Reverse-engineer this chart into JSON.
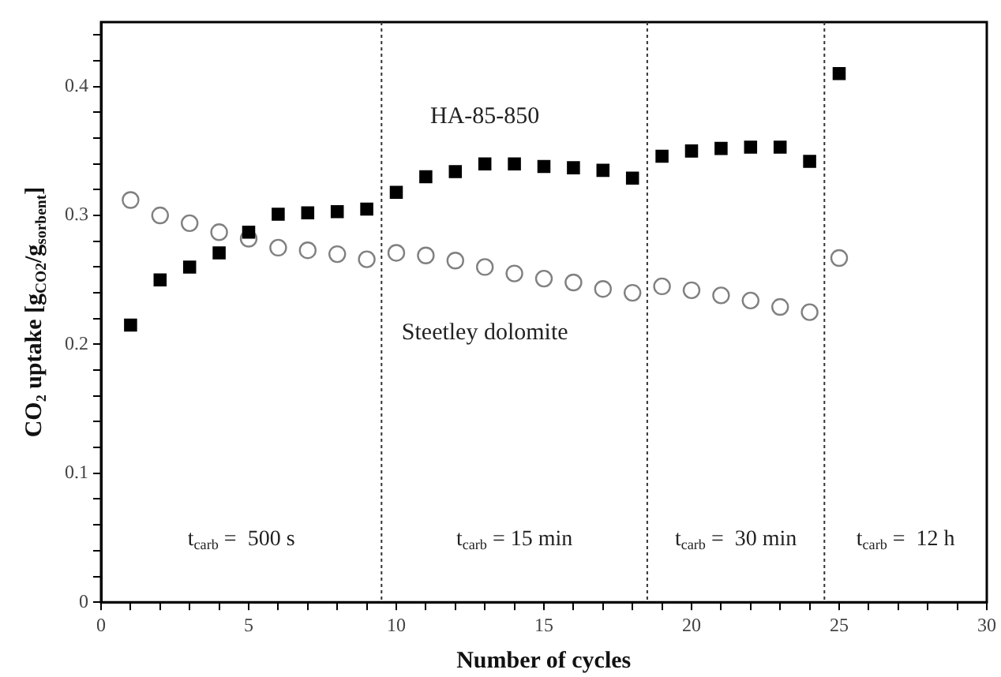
{
  "chart_data": {
    "type": "scatter",
    "xlabel": "Number of cycles",
    "ylabel": "CO₂ uptake [g$_{CO2}$/g$_{sorbent}$]",
    "x": [
      1,
      2,
      3,
      4,
      5,
      6,
      7,
      8,
      9,
      10,
      11,
      12,
      13,
      14,
      15,
      16,
      17,
      18,
      19,
      20,
      21,
      22,
      23,
      24,
      25
    ],
    "series": [
      {
        "name": "HA-85-850",
        "color": "#000000",
        "marker": "square",
        "values": [
          0.215,
          0.25,
          0.26,
          0.271,
          0.287,
          0.301,
          0.302,
          0.303,
          0.305,
          0.318,
          0.33,
          0.334,
          0.34,
          0.34,
          0.338,
          0.337,
          0.335,
          0.329,
          0.346,
          0.35,
          0.352,
          0.353,
          0.353,
          0.342,
          0.41
        ]
      },
      {
        "name": "Steetley dolomite",
        "color": "#808080",
        "marker": "circle",
        "values": [
          0.312,
          0.3,
          0.294,
          0.287,
          0.282,
          0.275,
          0.273,
          0.27,
          0.266,
          0.271,
          0.269,
          0.265,
          0.26,
          0.255,
          0.251,
          0.248,
          0.243,
          0.24,
          0.245,
          0.242,
          0.238,
          0.234,
          0.229,
          0.225,
          0.267
        ]
      }
    ],
    "xlim": [
      0,
      30
    ],
    "xticks": [
      0,
      {
        "value": 1,
        "label": null
      },
      {
        "value": 2,
        "label": null
      },
      {
        "value": 3,
        "label": null
      },
      {
        "value": 4,
        "label": null
      },
      5,
      {
        "value": 6,
        "label": null
      },
      {
        "value": 7,
        "label": null
      },
      {
        "value": 8,
        "label": null
      },
      {
        "value": 9,
        "label": null
      },
      10,
      {
        "value": 11,
        "label": null
      },
      {
        "value": 12,
        "label": null
      },
      {
        "value": 13,
        "label": null
      },
      {
        "value": 14,
        "label": null
      },
      15,
      {
        "value": 16,
        "label": null
      },
      {
        "value": 17,
        "label": null
      },
      {
        "value": 18,
        "label": null
      },
      {
        "value": 19,
        "label": null
      },
      20,
      {
        "value": 21,
        "label": null
      },
      {
        "value": 22,
        "label": null
      },
      {
        "value": 23,
        "label": null
      },
      {
        "value": 24,
        "label": null
      },
      25,
      {
        "value": 26,
        "label": null
      },
      {
        "value": 27,
        "label": null
      },
      {
        "value": 28,
        "label": null
      },
      {
        "value": 29,
        "label": null
      },
      30
    ],
    "ylim": [
      0,
      0.45
    ],
    "yticks": [
      0,
      {
        "value": 0.02,
        "label": null
      },
      {
        "value": 0.04,
        "label": null
      },
      {
        "value": 0.06,
        "label": null
      },
      {
        "value": 0.08,
        "label": null
      },
      0.1,
      {
        "value": 0.12,
        "label": null
      },
      {
        "value": 0.14,
        "label": null
      },
      {
        "value": 0.16,
        "label": null
      },
      {
        "value": 0.18,
        "label": null
      },
      0.2,
      {
        "value": 0.22,
        "label": null
      },
      {
        "value": 0.24,
        "label": null
      },
      {
        "value": 0.26,
        "label": null
      },
      {
        "value": 0.28,
        "label": null
      },
      0.3,
      {
        "value": 0.32,
        "label": null
      },
      {
        "value": 0.34,
        "label": null
      },
      {
        "value": 0.36,
        "label": null
      },
      {
        "value": 0.38,
        "label": null
      },
      0.4,
      {
        "value": 0.42,
        "label": null
      },
      {
        "value": 0.44,
        "label": null
      }
    ],
    "ref_lines": [
      {
        "axis": "x",
        "value": 9.5,
        "line_style": "dotted",
        "color": "#333333"
      },
      {
        "axis": "x",
        "value": 18.5,
        "line_style": "dotted",
        "color": "#333333"
      },
      {
        "axis": "x",
        "value": 24.5,
        "line_style": "dotted",
        "color": "#333333"
      }
    ],
    "annotations": [
      "t$_{carb}$ =  500 s",
      "t$_{carb}$ = 15 min",
      "t$_{carb}$ =  30 min",
      "t$_{carb}$ =  12 h"
    ],
    "grid": false,
    "legend": false
  }
}
